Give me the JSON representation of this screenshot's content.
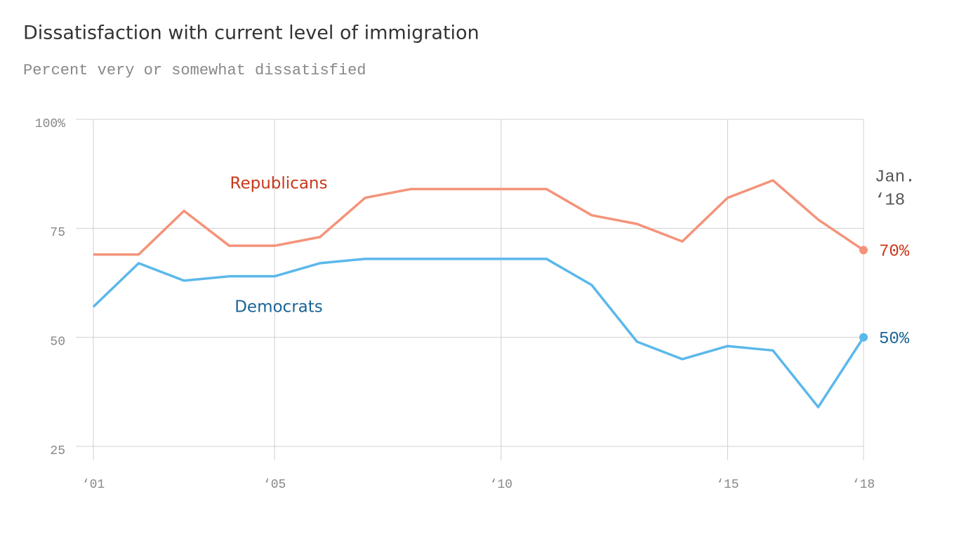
{
  "chart_data": {
    "type": "line",
    "title": "Dissatisfaction with current level of immigration",
    "subtitle": "Percent very or somewhat dissatisfied",
    "annotation": [
      "Jan.",
      "‘18"
    ],
    "x": [
      2001,
      2002,
      2003,
      2004,
      2005,
      2006,
      2007,
      2008,
      2009,
      2010,
      2011,
      2012,
      2013,
      2014,
      2015,
      2016,
      2017,
      2018
    ],
    "series": [
      {
        "name": "Republicans",
        "color": "#f4937a",
        "label_color": "#c8381a",
        "values": [
          69,
          69,
          79,
          71,
          71,
          73,
          82,
          84,
          84,
          84,
          84,
          78,
          76,
          72,
          82,
          86,
          77,
          70
        ],
        "value_labels": [
          null,
          null,
          null,
          null,
          null,
          null,
          null,
          null,
          null,
          null,
          null,
          null,
          null,
          null,
          null,
          null,
          null,
          "70%"
        ]
      },
      {
        "name": "Democrats",
        "color": "#5bb8eb",
        "label_color": "#1a6496",
        "values": [
          57,
          67,
          63,
          64,
          64,
          67,
          68,
          68,
          68,
          68,
          68,
          62,
          49,
          45,
          48,
          47,
          34,
          50
        ],
        "value_labels": [
          null,
          null,
          null,
          null,
          null,
          null,
          null,
          null,
          null,
          null,
          null,
          null,
          null,
          null,
          null,
          null,
          null,
          "50%"
        ]
      }
    ],
    "xlim": [
      2001,
      2018
    ],
    "xticks": [
      {
        "value": 2001,
        "label": "‘01"
      },
      {
        "value": 2005,
        "label": "‘05"
      },
      {
        "value": 2010,
        "label": "‘10"
      },
      {
        "value": 2015,
        "label": "‘15"
      },
      {
        "value": 2018,
        "label": "‘18"
      }
    ],
    "ylim": [
      25,
      100
    ],
    "yticks": [
      25,
      50,
      75,
      {
        "value": 100,
        "label": "100%"
      }
    ],
    "grid": true
  }
}
